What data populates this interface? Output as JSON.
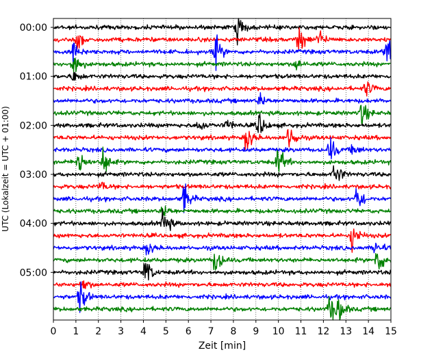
{
  "chart_data": {
    "type": "line",
    "title": "",
    "xlabel": "Zeit  [min]",
    "ylabel": "UTC (Lokalzeit = UTC + 01:00)",
    "xlim": [
      0,
      15
    ],
    "x_ticks": [
      "0",
      "1",
      "2",
      "3",
      "4",
      "5",
      "6",
      "7",
      "8",
      "9",
      "10",
      "11",
      "12",
      "13",
      "14",
      "15"
    ],
    "ylim_minutes": [
      0,
      360
    ],
    "y_ticks": [
      {
        "label": "00:00",
        "minutes": 0
      },
      {
        "label": "01:00",
        "minutes": 60
      },
      {
        "label": "02:00",
        "minutes": 120
      },
      {
        "label": "03:00",
        "minutes": 180
      },
      {
        "label": "04:00",
        "minutes": 240
      },
      {
        "label": "05:00",
        "minutes": 300
      }
    ],
    "grid": "vertical dotted lines at each minute",
    "trace_interval_minutes": 15,
    "trace_colors": [
      "#000000",
      "#ff0000",
      "#0000ff",
      "#008000"
    ],
    "traces": [
      {
        "start": "00:00",
        "color": "#000000",
        "events": [
          {
            "t": 8.2,
            "amp": 0.9
          }
        ]
      },
      {
        "start": "00:15",
        "color": "#ff0000",
        "events": [
          {
            "t": 1.1,
            "amp": 0.7
          },
          {
            "t": 10.9,
            "amp": 1.0
          },
          {
            "t": 11.8,
            "amp": 0.6
          }
        ]
      },
      {
        "start": "00:30",
        "color": "#0000ff",
        "events": [
          {
            "t": 0.9,
            "amp": 0.8
          },
          {
            "t": 7.2,
            "amp": 1.0
          },
          {
            "t": 14.8,
            "amp": 0.9
          }
        ]
      },
      {
        "start": "00:45",
        "color": "#008000",
        "events": [
          {
            "t": 0.9,
            "amp": 1.0
          },
          {
            "t": 10.8,
            "amp": 0.4
          }
        ]
      },
      {
        "start": "01:00",
        "color": "#000000",
        "events": [
          {
            "t": 0.9,
            "amp": 0.4
          }
        ]
      },
      {
        "start": "01:15",
        "color": "#ff0000",
        "events": [
          {
            "t": 13.9,
            "amp": 0.5
          }
        ]
      },
      {
        "start": "01:30",
        "color": "#0000ff",
        "events": [
          {
            "t": 9.2,
            "amp": 0.4
          }
        ]
      },
      {
        "start": "01:45",
        "color": "#008000",
        "events": [
          {
            "t": 13.7,
            "amp": 0.8
          }
        ]
      },
      {
        "start": "02:00",
        "color": "#000000",
        "events": [
          {
            "t": 6.5,
            "amp": 0.4
          },
          {
            "t": 7.7,
            "amp": 0.4
          },
          {
            "t": 9.1,
            "amp": 1.0
          }
        ]
      },
      {
        "start": "02:15",
        "color": "#ff0000",
        "events": [
          {
            "t": 8.6,
            "amp": 1.0
          },
          {
            "t": 10.5,
            "amp": 1.0
          }
        ]
      },
      {
        "start": "02:30",
        "color": "#0000ff",
        "events": [
          {
            "t": 12.3,
            "amp": 0.8
          },
          {
            "t": 13.3,
            "amp": 0.4
          }
        ]
      },
      {
        "start": "02:45",
        "color": "#008000",
        "events": [
          {
            "t": 1.1,
            "amp": 1.0
          },
          {
            "t": 2.2,
            "amp": 1.0
          },
          {
            "t": 10.0,
            "amp": 1.0
          }
        ]
      },
      {
        "start": "03:00",
        "color": "#000000",
        "events": [
          {
            "t": 12.5,
            "amp": 0.9
          }
        ]
      },
      {
        "start": "03:15",
        "color": "#ff0000",
        "events": [
          {
            "t": 2.1,
            "amp": 0.3
          }
        ]
      },
      {
        "start": "03:30",
        "color": "#0000ff",
        "events": [
          {
            "t": 5.8,
            "amp": 1.0
          },
          {
            "t": 13.5,
            "amp": 1.0
          }
        ]
      },
      {
        "start": "03:45",
        "color": "#008000",
        "events": [
          {
            "t": 4.9,
            "amp": 0.4
          }
        ]
      },
      {
        "start": "04:00",
        "color": "#000000",
        "events": [
          {
            "t": 4.9,
            "amp": 1.0
          }
        ]
      },
      {
        "start": "04:15",
        "color": "#ff0000",
        "events": [
          {
            "t": 13.3,
            "amp": 1.0
          }
        ]
      },
      {
        "start": "04:30",
        "color": "#0000ff",
        "events": [
          {
            "t": 4.2,
            "amp": 0.5
          },
          {
            "t": 14.3,
            "amp": 0.5
          }
        ]
      },
      {
        "start": "04:45",
        "color": "#008000",
        "events": [
          {
            "t": 7.2,
            "amp": 1.0
          },
          {
            "t": 14.4,
            "amp": 1.0
          }
        ]
      },
      {
        "start": "05:00",
        "color": "#000000",
        "events": [
          {
            "t": 4.1,
            "amp": 1.0
          }
        ]
      },
      {
        "start": "05:15",
        "color": "#ff0000",
        "events": [
          {
            "t": 1.3,
            "amp": 0.4
          }
        ]
      },
      {
        "start": "05:30",
        "color": "#0000ff",
        "events": [
          {
            "t": 1.2,
            "amp": 1.0
          }
        ]
      },
      {
        "start": "05:45",
        "color": "#008000",
        "events": [
          {
            "t": 12.3,
            "amp": 1.0
          },
          {
            "t": 12.7,
            "amp": 0.8
          }
        ]
      }
    ]
  }
}
